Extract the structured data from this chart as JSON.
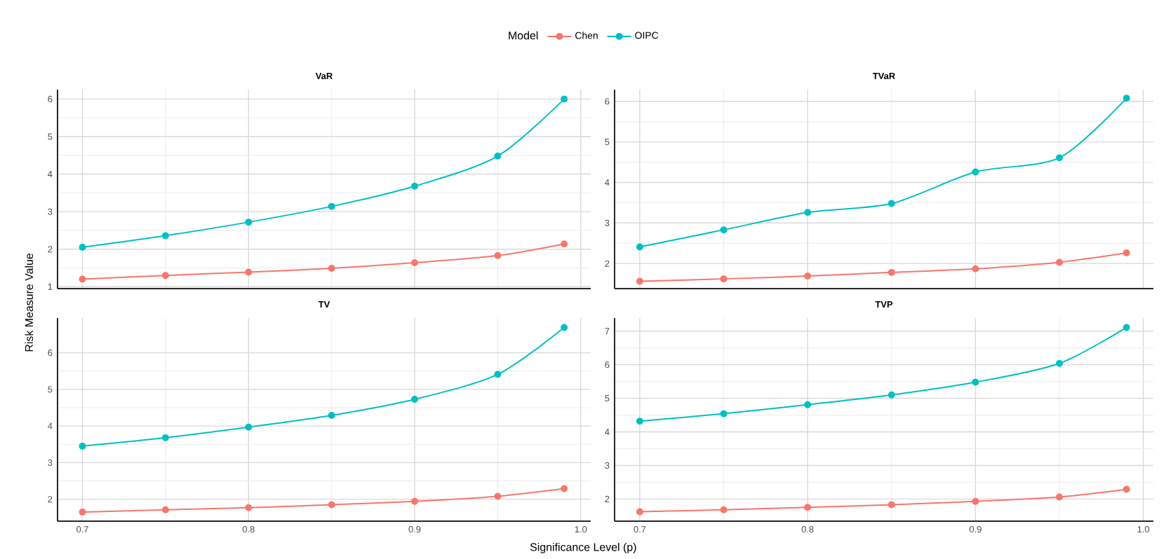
{
  "chart_data": [
    {
      "type": "line",
      "title": "VaR",
      "legend_title": "Model",
      "legend": "top",
      "grid": true,
      "marker": "circle",
      "tick_labels": "y",
      "x": [
        0.7,
        0.75,
        0.8,
        0.85,
        0.9,
        0.95,
        0.99
      ],
      "xlim": [
        0.685,
        1.006
      ],
      "xticks": [
        0.7,
        0.8,
        0.9,
        1
      ],
      "ylim": [
        0.95,
        6.25
      ],
      "yticks": [
        1,
        2,
        3,
        4,
        5,
        6
      ],
      "series": [
        {
          "name": "Chen",
          "color": "#f8766d",
          "values": [
            1.2,
            1.3,
            1.39,
            1.49,
            1.64,
            1.83,
            2.14
          ]
        },
        {
          "name": "OIPC",
          "color": "#00bfc4",
          "values": [
            2.05,
            2.36,
            2.72,
            3.14,
            3.68,
            4.48,
            6.0
          ]
        }
      ]
    },
    {
      "type": "line",
      "title": "TVaR",
      "grid": true,
      "marker": "circle",
      "tick_labels": "y",
      "x": [
        0.7,
        0.75,
        0.8,
        0.85,
        0.9,
        0.95,
        0.99
      ],
      "xlim": [
        0.685,
        1.006
      ],
      "xticks": [
        0.7,
        0.8,
        0.9,
        1
      ],
      "ylim": [
        1.38,
        6.29
      ],
      "yticks": [
        2,
        3,
        4,
        5,
        6
      ],
      "series": [
        {
          "color": "#f8766d",
          "values": [
            1.56,
            1.62,
            1.69,
            1.78,
            1.87,
            2.03,
            2.26
          ]
        },
        {
          "color": "#00bfc4",
          "values": [
            2.41,
            2.83,
            3.26,
            3.48,
            4.26,
            4.61,
            6.08
          ]
        }
      ]
    },
    {
      "type": "line",
      "title": "TV",
      "xlabel": "Significance Level (p)",
      "ylabel": "Risk Measure Value",
      "grid": true,
      "marker": "circle",
      "x": [
        0.7,
        0.75,
        0.8,
        0.85,
        0.9,
        0.95,
        0.99
      ],
      "xlim": [
        0.685,
        1.006
      ],
      "xticks": [
        0.7,
        0.8,
        0.9,
        {
          "value": 1,
          "label": "1.0"
        }
      ],
      "ylim": [
        1.4,
        6.95
      ],
      "yticks": [
        2,
        3,
        4,
        5,
        6
      ],
      "series": [
        {
          "color": "#f8766d",
          "values": [
            1.65,
            1.71,
            1.77,
            1.85,
            1.94,
            2.08,
            2.29
          ]
        },
        {
          "color": "#00bfc4",
          "values": [
            3.45,
            3.68,
            3.97,
            4.29,
            4.73,
            5.41,
            6.69
          ]
        }
      ]
    },
    {
      "type": "line",
      "title": "TVP",
      "grid": true,
      "marker": "circle",
      "x": [
        0.7,
        0.75,
        0.8,
        0.85,
        0.9,
        0.95,
        0.99
      ],
      "xlim": [
        0.685,
        1.006
      ],
      "xticks": [
        0.7,
        0.8,
        0.9,
        {
          "value": 1,
          "label": "1.0"
        }
      ],
      "ylim": [
        1.34,
        7.39
      ],
      "yticks": [
        2,
        3,
        4,
        5,
        6,
        7
      ],
      "series": [
        {
          "color": "#f8766d",
          "values": [
            1.62,
            1.68,
            1.75,
            1.83,
            1.93,
            2.06,
            2.29
          ]
        },
        {
          "color": "#00bfc4",
          "values": [
            4.32,
            4.54,
            4.81,
            5.1,
            5.48,
            6.04,
            7.11
          ]
        }
      ]
    }
  ]
}
